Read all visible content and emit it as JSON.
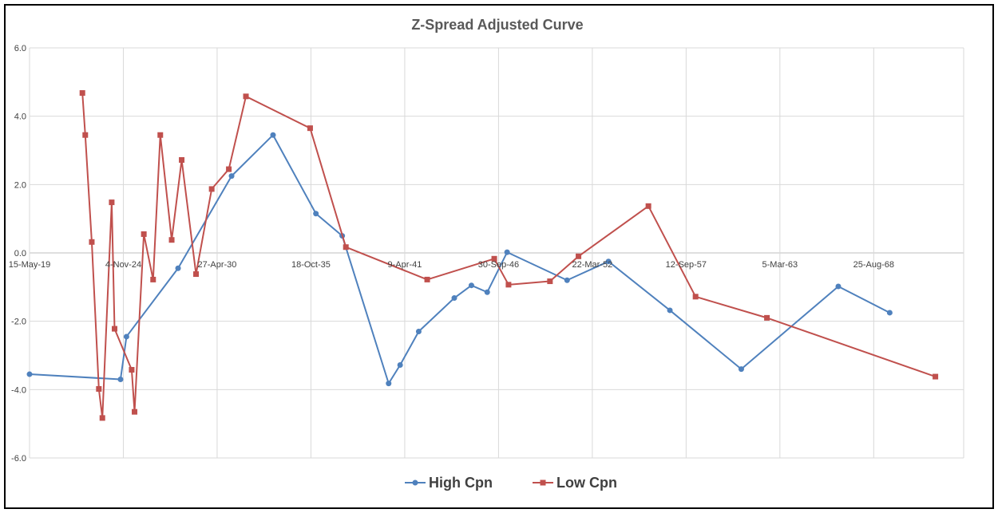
{
  "chart_data": {
    "type": "line",
    "title": "Z-Spread Adjusted Curve",
    "xlabel": "",
    "ylabel": "",
    "x_axis": {
      "kind": "date",
      "range": [
        "2019-05-15",
        "2073-11-25"
      ],
      "tick_labels": [
        "15-May-19",
        "4-Nov-24",
        "27-Apr-30",
        "18-Oct-35",
        "9-Apr-41",
        "30-Sep-46",
        "22-Mar-52",
        "12-Sep-57",
        "5-Mar-63",
        "25-Aug-68"
      ],
      "label_position": "at y = 0 line"
    },
    "y_axis": {
      "range": [
        -6,
        6
      ],
      "tick_values": [
        6,
        4,
        2,
        0,
        -2,
        -4,
        -6
      ],
      "tick_labels": [
        "6.0",
        "4.0",
        "2.0",
        "0.0",
        "-2.0",
        "-4.0",
        "-6.0"
      ]
    },
    "grid": true,
    "legend": {
      "position": "bottom"
    },
    "series": [
      {
        "name": "High Cpn",
        "color": "#4F81BD",
        "marker": "circle",
        "points": [
          [
            "2019-05-15",
            -3.55
          ],
          [
            "2024-09-05",
            -3.7
          ],
          [
            "2025-01-10",
            -2.45
          ],
          [
            "2028-01-15",
            -0.45
          ],
          [
            "2031-03-01",
            2.25
          ],
          [
            "2033-08-01",
            3.45
          ],
          [
            "2036-02-01",
            1.15
          ],
          [
            "2037-08-15",
            0.5
          ],
          [
            "2040-05-01",
            -3.82
          ],
          [
            "2041-01-01",
            -3.28
          ],
          [
            "2042-02-01",
            -2.3
          ],
          [
            "2044-03-01",
            -1.32
          ],
          [
            "2045-03-01",
            -0.95
          ],
          [
            "2046-02-01",
            -1.15
          ],
          [
            "2047-04-01",
            0.02
          ],
          [
            "2050-10-01",
            -0.8
          ],
          [
            "2053-03-01",
            -0.25
          ],
          [
            "2056-10-01",
            -1.68
          ],
          [
            "2060-12-01",
            -3.4
          ],
          [
            "2066-08-01",
            -0.98
          ],
          [
            "2069-08-01",
            -1.75
          ]
        ]
      },
      {
        "name": "Low Cpn",
        "color": "#C0504D",
        "marker": "square",
        "points": [
          [
            "2022-06-15",
            4.68
          ],
          [
            "2022-08-15",
            3.45
          ],
          [
            "2023-01-01",
            0.32
          ],
          [
            "2023-06-01",
            -3.98
          ],
          [
            "2023-08-15",
            -4.83
          ],
          [
            "2024-03-01",
            1.48
          ],
          [
            "2024-05-01",
            -2.22
          ],
          [
            "2025-05-01",
            -3.42
          ],
          [
            "2025-07-01",
            -4.65
          ],
          [
            "2026-01-15",
            0.55
          ],
          [
            "2026-08-01",
            -0.78
          ],
          [
            "2027-01-01",
            3.45
          ],
          [
            "2027-09-01",
            0.38
          ],
          [
            "2028-04-01",
            2.72
          ],
          [
            "2029-02-01",
            -0.62
          ],
          [
            "2030-01-01",
            1.87
          ],
          [
            "2031-01-01",
            2.45
          ],
          [
            "2032-01-01",
            4.58
          ],
          [
            "2035-10-01",
            3.65
          ],
          [
            "2037-11-01",
            0.17
          ],
          [
            "2042-08-01",
            -0.78
          ],
          [
            "2046-07-01",
            -0.17
          ],
          [
            "2047-05-01",
            -0.93
          ],
          [
            "2049-10-01",
            -0.83
          ],
          [
            "2051-06-01",
            -0.1
          ],
          [
            "2055-07-01",
            1.37
          ],
          [
            "2058-04-01",
            -1.28
          ],
          [
            "2062-06-01",
            -1.9
          ],
          [
            "2072-04-01",
            -3.62
          ]
        ]
      }
    ]
  }
}
